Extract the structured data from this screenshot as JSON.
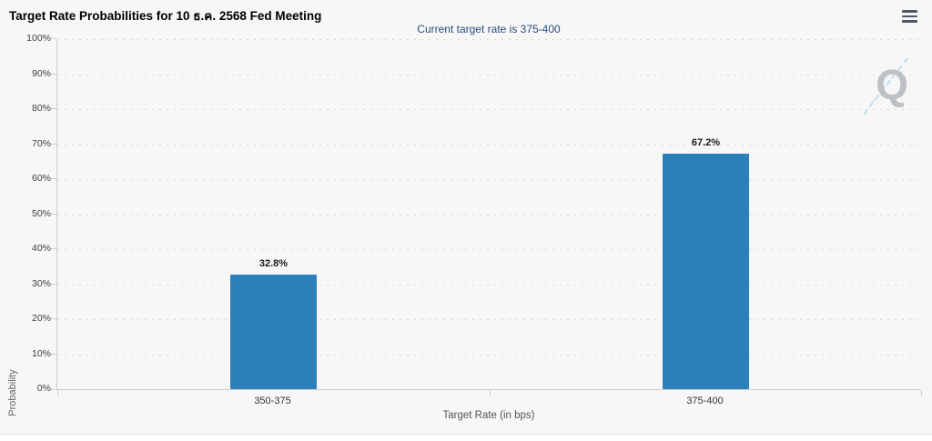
{
  "header": {
    "title": "Target Rate Probabilities for 10 ธ.ค. 2568 Fed Meeting",
    "menu_icon": "hamburger-menu-icon"
  },
  "watermark": {
    "letter": "Q"
  },
  "chart_data": {
    "type": "bar",
    "title": "Target Rate Probabilities for 10 ธ.ค. 2568 Fed Meeting",
    "subtitle": "Current target rate is 375-400",
    "categories": [
      "350-375",
      "375-400"
    ],
    "values": [
      32.8,
      67.2
    ],
    "value_labels": [
      "32.8%",
      "67.2%"
    ],
    "xlabel": "Target Rate (in bps)",
    "ylabel": "Probability",
    "ylim": [
      0,
      100
    ],
    "ytick_step": 10,
    "ytick_labels": [
      "0%",
      "10%",
      "20%",
      "30%",
      "40%",
      "50%",
      "60%",
      "70%",
      "80%",
      "90%",
      "100%"
    ],
    "grid": "dotted-horizontal",
    "legend": "none",
    "colors": {
      "bar": "#2b80ba",
      "subtitle_text": "#2a4b7c",
      "axis_line": "#cccccc",
      "grid_line": "#d6d6d6",
      "tick_text": "#404040",
      "axis_title_text": "#666666",
      "title_text": "#000000",
      "background": "#f7f7f7",
      "watermark": "#bdc1c6"
    }
  }
}
